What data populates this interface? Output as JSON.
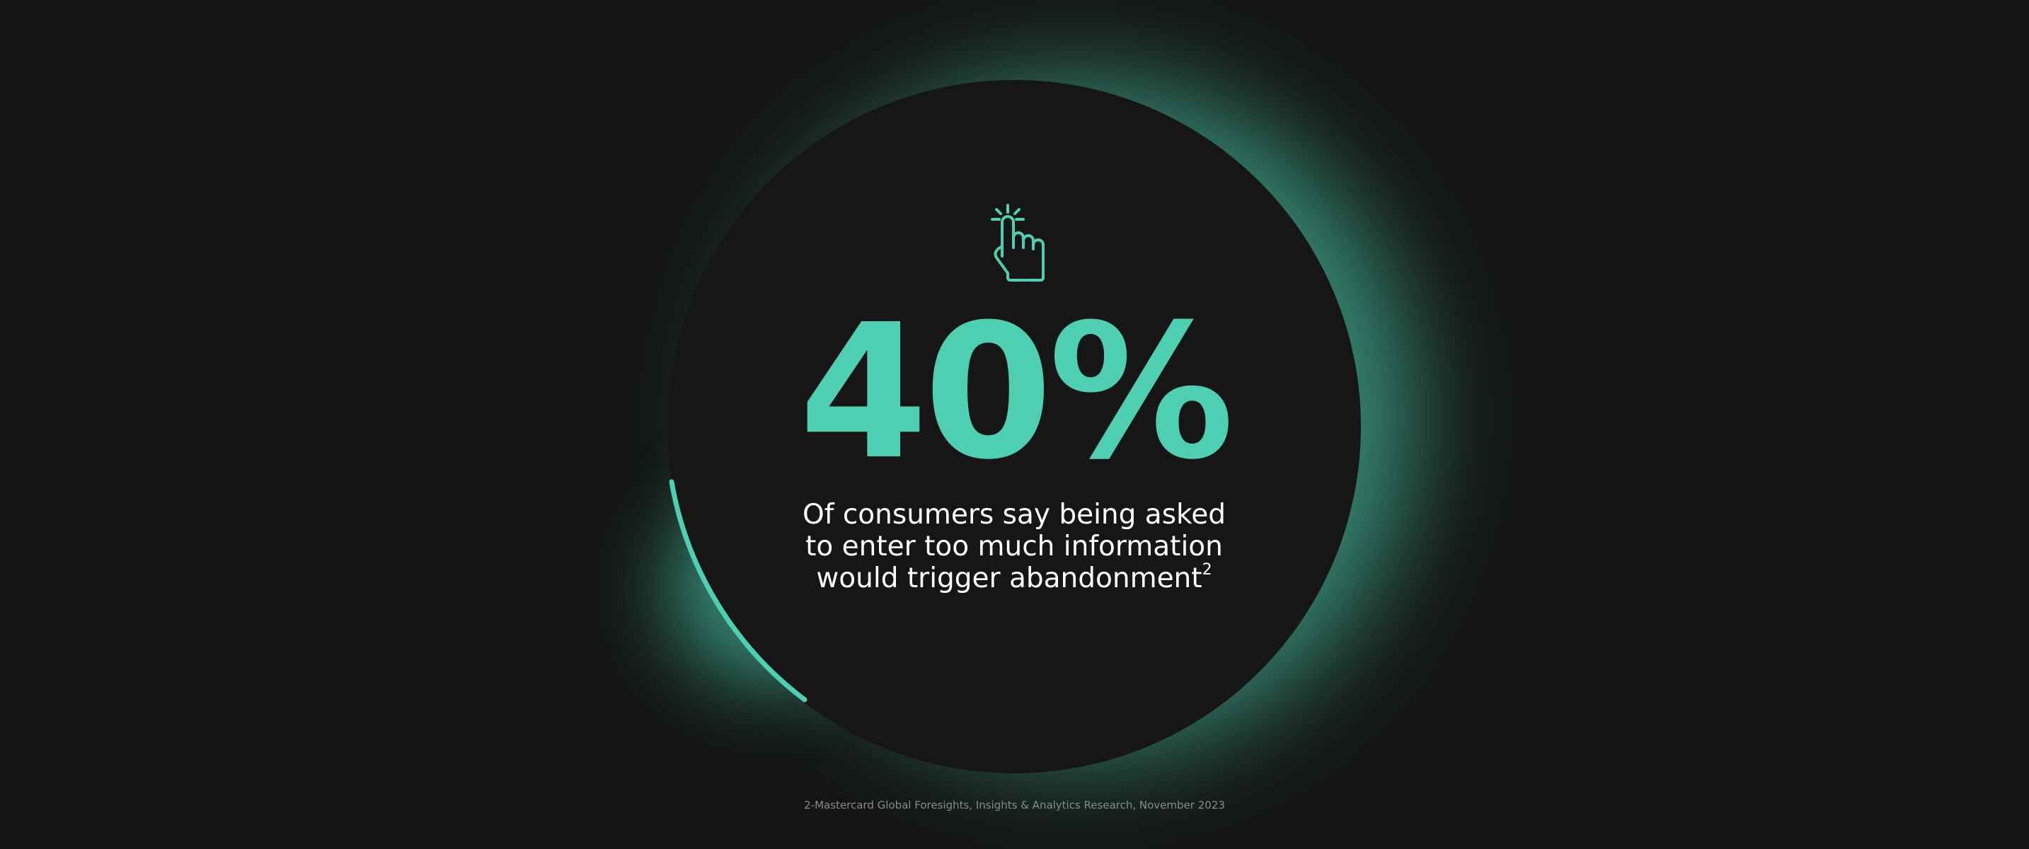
{
  "stat": {
    "value": "40%",
    "percent": 40
  },
  "description": {
    "text": "Of consumers say being asked to enter too much information would trigger abandonment",
    "superscript": "2"
  },
  "footnote": "2-Mastercard Global Foresights, Insights & Analytics Research, November 2023",
  "icon": "hand-pointer-tap-icon",
  "colors": {
    "background": "#141514",
    "accent": "#4fcfb2",
    "circle": "#161716",
    "text": "#ffffff",
    "footnote": "#8a8b89"
  }
}
